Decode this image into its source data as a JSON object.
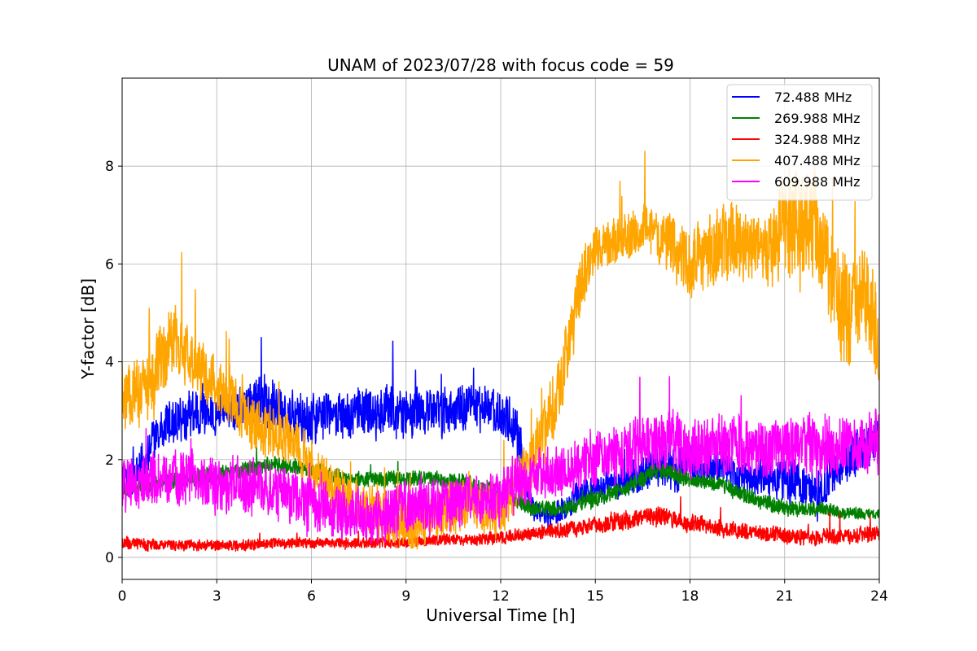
{
  "chart_data": {
    "type": "line",
    "title": "UNAM of 2023/07/28 with focus code = 59",
    "xlabel": "Universal Time [h]",
    "ylabel": "Y-factor [dB]",
    "xlim": [
      0,
      24
    ],
    "ylim": [
      -0.45,
      9.8
    ],
    "x_ticks": [
      0,
      3,
      6,
      9,
      12,
      15,
      18,
      21,
      24
    ],
    "y_ticks": [
      0,
      2,
      4,
      6,
      8
    ],
    "grid": true,
    "legend_position": "top-right",
    "series": [
      {
        "name": " 72.488 MHz",
        "color": "#0000ff",
        "x": [
          0.0,
          0.5,
          1.0,
          1.5,
          2.0,
          2.5,
          3.0,
          3.5,
          4.0,
          4.5,
          5.0,
          5.5,
          6.0,
          6.5,
          7.0,
          7.5,
          8.0,
          8.5,
          9.0,
          9.5,
          10.0,
          10.5,
          11.0,
          11.5,
          12.0,
          12.5,
          13.0,
          13.5,
          14.0,
          14.5,
          15.0,
          15.5,
          16.0,
          16.5,
          17.0,
          17.5,
          18.0,
          18.5,
          19.0,
          19.5,
          20.0,
          20.5,
          21.0,
          21.5,
          22.0,
          22.5,
          23.0,
          23.5,
          24.0
        ],
        "y": [
          1.5,
          1.7,
          2.4,
          2.8,
          2.9,
          3.0,
          2.9,
          3.0,
          3.1,
          3.2,
          3.0,
          2.9,
          2.8,
          2.9,
          2.9,
          3.0,
          2.9,
          3.0,
          2.9,
          3.0,
          3.0,
          3.0,
          3.1,
          3.1,
          3.0,
          2.6,
          1.0,
          0.8,
          1.0,
          1.3,
          1.4,
          1.5,
          1.6,
          1.7,
          1.9,
          1.8,
          1.9,
          1.8,
          1.9,
          1.7,
          1.6,
          1.7,
          1.6,
          1.5,
          1.3,
          1.7,
          2.0,
          2.2,
          2.4
        ],
        "noise": [
          0.6,
          0.8,
          0.8,
          0.9,
          0.9,
          0.9,
          0.8,
          0.8,
          0.9,
          0.9,
          0.9,
          0.9,
          0.9,
          0.9,
          0.9,
          0.9,
          0.9,
          0.9,
          0.9,
          0.9,
          0.9,
          0.9,
          0.9,
          0.9,
          0.9,
          0.9,
          0.5,
          0.4,
          0.5,
          0.5,
          0.5,
          0.6,
          0.6,
          0.7,
          0.8,
          0.8,
          0.8,
          0.7,
          0.7,
          0.7,
          0.7,
          0.7,
          0.8,
          0.8,
          0.8,
          0.8,
          0.8,
          0.8,
          0.8
        ]
      },
      {
        "name": "269.988 MHz",
        "color": "#008000",
        "x": [
          0.0,
          1.0,
          2.0,
          3.0,
          4.0,
          5.0,
          6.0,
          7.0,
          8.0,
          9.0,
          10.0,
          11.0,
          12.0,
          13.0,
          14.0,
          15.0,
          16.0,
          17.0,
          18.0,
          19.0,
          20.0,
          21.0,
          22.0,
          23.0,
          24.0
        ],
        "y": [
          1.4,
          1.5,
          1.6,
          1.7,
          1.8,
          1.9,
          1.8,
          1.6,
          1.6,
          1.6,
          1.6,
          1.5,
          1.3,
          1.0,
          1.0,
          1.2,
          1.4,
          1.8,
          1.6,
          1.5,
          1.2,
          1.0,
          1.0,
          0.9,
          0.9
        ],
        "noise": [
          0.3,
          0.3,
          0.3,
          0.3,
          0.3,
          0.3,
          0.3,
          0.3,
          0.3,
          0.3,
          0.3,
          0.3,
          0.3,
          0.3,
          0.3,
          0.3,
          0.3,
          0.35,
          0.3,
          0.3,
          0.3,
          0.3,
          0.3,
          0.25,
          0.2
        ]
      },
      {
        "name": "324.988 MHz",
        "color": "#ff0000",
        "x": [
          0.0,
          1.0,
          2.0,
          3.0,
          4.0,
          5.0,
          6.0,
          7.0,
          8.0,
          9.0,
          10.0,
          11.0,
          12.0,
          13.0,
          14.0,
          15.0,
          16.0,
          17.0,
          18.0,
          19.0,
          20.0,
          21.0,
          22.0,
          23.0,
          24.0
        ],
        "y": [
          0.3,
          0.25,
          0.25,
          0.25,
          0.25,
          0.3,
          0.3,
          0.3,
          0.3,
          0.3,
          0.35,
          0.35,
          0.4,
          0.5,
          0.55,
          0.65,
          0.75,
          0.85,
          0.7,
          0.6,
          0.5,
          0.45,
          0.4,
          0.45,
          0.5
        ],
        "noise": [
          0.25,
          0.2,
          0.2,
          0.2,
          0.2,
          0.2,
          0.2,
          0.2,
          0.2,
          0.2,
          0.2,
          0.2,
          0.25,
          0.25,
          0.3,
          0.3,
          0.35,
          0.35,
          0.35,
          0.3,
          0.3,
          0.3,
          0.3,
          0.3,
          0.3
        ]
      },
      {
        "name": "407.488 MHz",
        "color": "#ffa500",
        "x": [
          0.0,
          0.5,
          1.0,
          1.5,
          2.0,
          2.5,
          3.0,
          3.5,
          4.0,
          4.5,
          5.0,
          5.5,
          6.0,
          6.5,
          7.0,
          7.5,
          8.0,
          8.5,
          9.0,
          9.5,
          10.0,
          10.5,
          11.0,
          11.5,
          12.0,
          12.5,
          13.0,
          13.5,
          14.0,
          14.5,
          15.0,
          15.5,
          16.0,
          16.5,
          17.0,
          17.5,
          18.0,
          18.5,
          19.0,
          19.5,
          20.0,
          20.5,
          21.0,
          21.5,
          22.0,
          22.5,
          23.0,
          23.5,
          24.0
        ],
        "y": [
          3.3,
          3.4,
          3.6,
          4.4,
          4.2,
          3.8,
          3.5,
          3.2,
          2.8,
          2.6,
          2.5,
          2.3,
          1.9,
          1.5,
          1.2,
          1.0,
          0.9,
          0.8,
          0.6,
          0.8,
          0.9,
          1.0,
          1.2,
          1.0,
          1.0,
          1.5,
          2.0,
          2.8,
          3.8,
          5.5,
          6.3,
          6.4,
          6.6,
          6.7,
          6.6,
          6.3,
          6.0,
          6.2,
          6.5,
          6.4,
          6.3,
          6.2,
          7.0,
          6.7,
          6.8,
          5.5,
          5.0,
          5.5,
          4.5
        ],
        "noise": [
          1.2,
          1.3,
          1.4,
          1.4,
          1.2,
          1.1,
          1.0,
          1.0,
          1.0,
          1.0,
          1.0,
          1.0,
          1.0,
          1.0,
          1.0,
          1.0,
          1.0,
          1.0,
          1.0,
          1.0,
          1.0,
          1.0,
          1.0,
          1.0,
          1.0,
          1.0,
          1.2,
          1.3,
          1.3,
          1.2,
          0.9,
          0.9,
          0.9,
          0.9,
          1.0,
          1.2,
          1.3,
          1.3,
          1.5,
          1.5,
          1.4,
          1.4,
          2.0,
          2.4,
          2.0,
          2.0,
          2.0,
          1.8,
          1.8
        ]
      },
      {
        "name": "609.988 MHz",
        "color": "#ff00ff",
        "x": [
          0.0,
          0.5,
          1.0,
          1.5,
          2.0,
          2.5,
          3.0,
          3.5,
          4.0,
          4.5,
          5.0,
          5.5,
          6.0,
          6.5,
          7.0,
          7.5,
          8.0,
          8.5,
          9.0,
          9.5,
          10.0,
          10.5,
          11.0,
          11.5,
          12.0,
          12.5,
          13.0,
          13.5,
          14.0,
          14.5,
          15.0,
          15.5,
          16.0,
          16.5,
          17.0,
          17.5,
          18.0,
          18.5,
          19.0,
          19.5,
          20.0,
          20.5,
          21.0,
          21.5,
          22.0,
          22.5,
          23.0,
          23.5,
          24.0
        ],
        "y": [
          1.5,
          1.5,
          1.6,
          1.6,
          1.7,
          1.6,
          1.5,
          1.5,
          1.4,
          1.4,
          1.3,
          1.2,
          1.1,
          1.0,
          0.9,
          0.8,
          0.8,
          0.9,
          1.0,
          1.1,
          1.1,
          1.1,
          1.2,
          1.2,
          1.3,
          1.5,
          1.6,
          1.7,
          1.8,
          1.9,
          2.0,
          2.1,
          2.2,
          2.3,
          2.4,
          2.3,
          2.2,
          2.2,
          2.3,
          2.3,
          2.2,
          2.2,
          2.3,
          2.3,
          2.2,
          2.2,
          2.3,
          2.3,
          2.4
        ],
        "noise": [
          1.0,
          1.0,
          1.0,
          1.0,
          1.0,
          1.0,
          1.0,
          1.0,
          1.0,
          1.0,
          1.0,
          1.0,
          1.0,
          1.0,
          1.0,
          1.0,
          1.0,
          1.0,
          1.0,
          1.0,
          1.0,
          1.0,
          1.0,
          1.0,
          1.0,
          1.0,
          1.0,
          1.0,
          1.0,
          1.0,
          1.0,
          1.0,
          1.1,
          1.2,
          1.2,
          1.2,
          1.1,
          1.1,
          1.1,
          1.1,
          1.1,
          1.1,
          1.1,
          1.1,
          1.1,
          1.1,
          1.1,
          1.1,
          1.2
        ]
      }
    ]
  }
}
